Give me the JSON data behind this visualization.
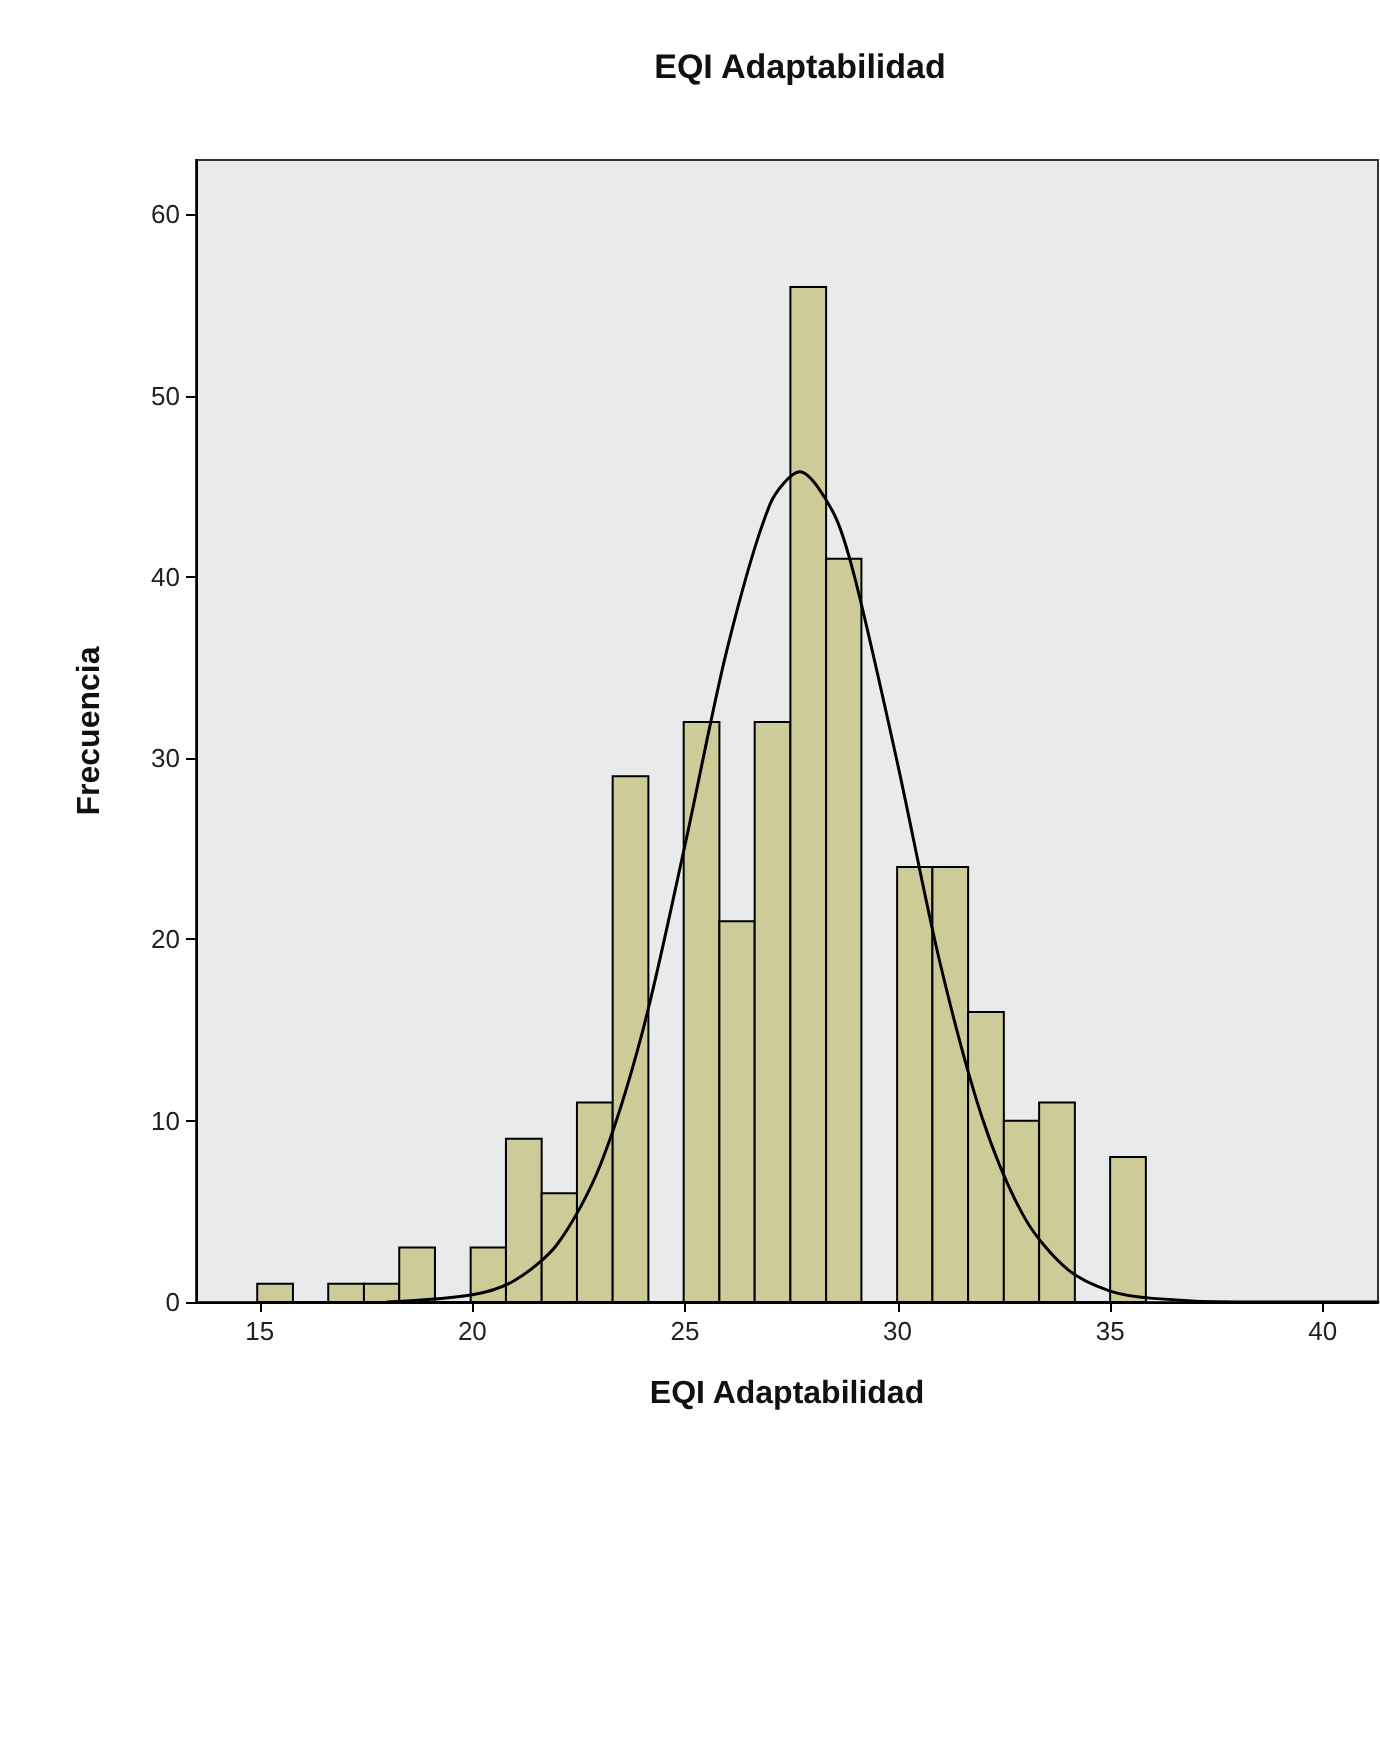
{
  "chart_data": {
    "type": "histogram",
    "title": "EQI Adaptabilidad",
    "xlabel": "EQI Adaptabilidad",
    "ylabel": "Frecuencia",
    "series": [
      {
        "color": "#cdcc98",
        "bins": [
          14.94,
          15.78,
          16.61,
          17.45,
          18.28,
          19.12,
          19.96,
          20.79,
          21.63,
          22.46,
          23.3,
          24.14,
          24.97,
          25.81,
          26.64,
          27.48,
          28.32,
          29.15,
          29.99,
          30.82,
          31.66,
          32.5,
          33.33,
          34.17,
          35.0,
          35.84
        ],
        "values": [
          1,
          0,
          1,
          1,
          3,
          0,
          3,
          9,
          6,
          11,
          29,
          0,
          32,
          21,
          32,
          56,
          41,
          0,
          24,
          24,
          16,
          10,
          11,
          0,
          8
        ]
      },
      {
        "type": "line",
        "color": "#000000",
        "x": [
          18,
          20,
          21,
          22,
          23,
          24,
          25,
          26,
          27,
          27.7,
          28.5,
          29,
          30,
          31,
          32,
          33,
          34,
          35,
          36,
          38,
          41.3
        ],
        "values": [
          0,
          0.4,
          1.2,
          3.2,
          7.5,
          14.9,
          25.2,
          36.1,
          44,
          45.8,
          43.5,
          39.9,
          29.7,
          18.7,
          10.1,
          4.6,
          1.8,
          0.6,
          0.2,
          0,
          0
        ]
      }
    ],
    "xlim": [
      13.5,
      41.3
    ],
    "xticks": [
      15,
      20,
      25,
      30,
      35,
      40
    ],
    "ylim": [
      0,
      63
    ],
    "yticks": [
      0,
      10,
      20,
      30,
      40,
      50,
      60
    ],
    "grid": false,
    "marker": "none",
    "line_style": "solid"
  }
}
